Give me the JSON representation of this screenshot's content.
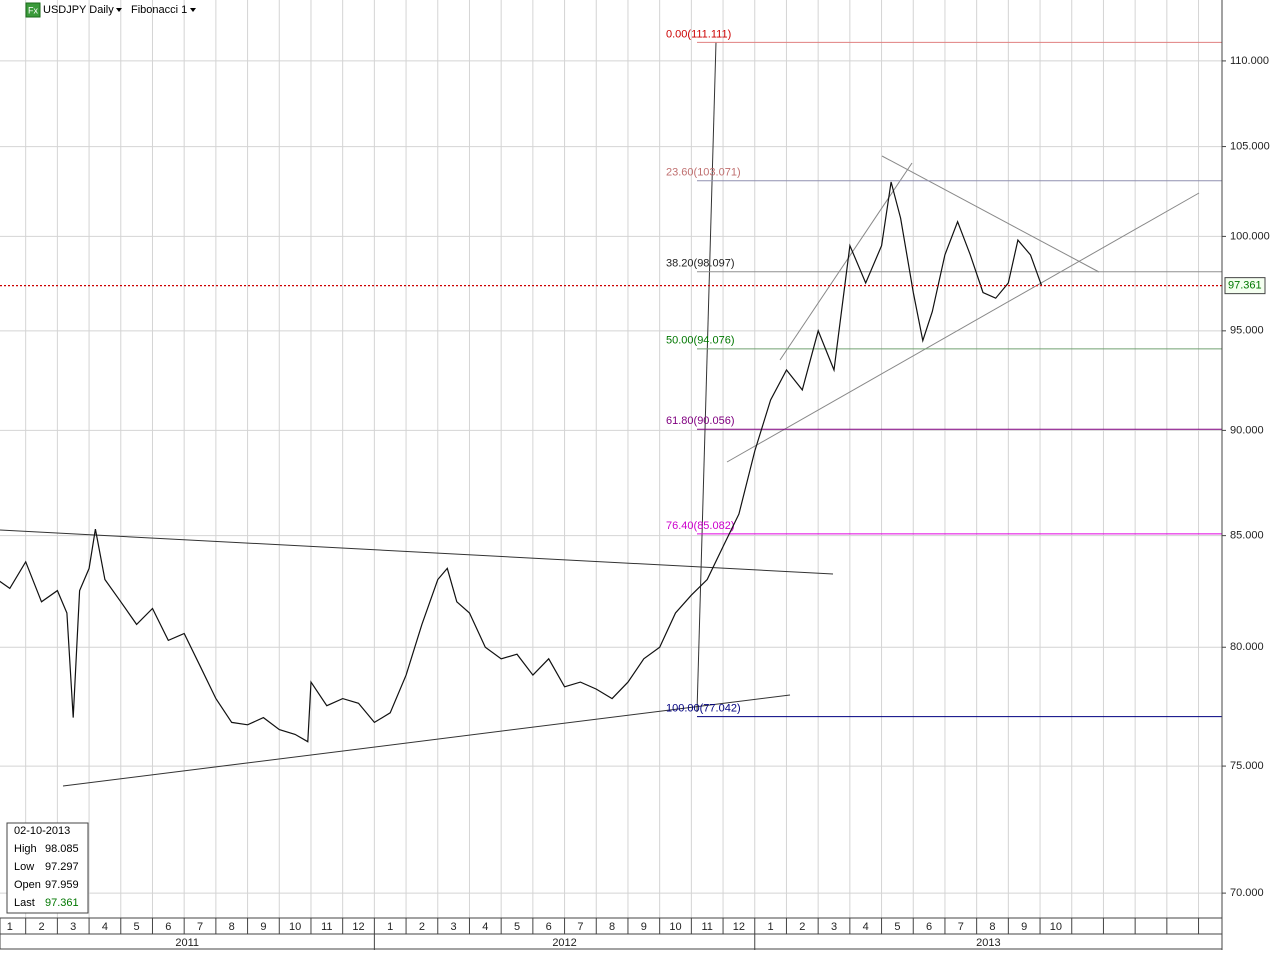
{
  "header": {
    "badge": "Fx",
    "symbol": "USDJPY Daily",
    "study": "Fibonacci 1"
  },
  "chart_data": {
    "type": "line",
    "color": "#111111",
    "log_scale": true,
    "grid": true,
    "x": [
      0.1,
      0.5,
      1.0,
      1.5,
      2.0,
      2.3,
      2.5,
      2.7,
      3.0,
      3.2,
      3.5,
      4.0,
      4.5,
      5.0,
      5.5,
      6.0,
      6.5,
      7.0,
      7.5,
      8.0,
      8.5,
      9.0,
      9.5,
      9.9,
      10.0,
      10.5,
      11.0,
      11.5,
      12.0,
      12.5,
      13.0,
      13.5,
      14.0,
      14.3,
      14.6,
      15.0,
      15.5,
      16.0,
      16.5,
      17.0,
      17.5,
      18.0,
      18.5,
      19.0,
      19.5,
      20.0,
      20.5,
      21.0,
      21.5,
      22.0,
      22.5,
      23.0,
      23.5,
      24.0,
      24.5,
      25.0,
      25.5,
      26.0,
      26.5,
      27.0,
      27.5,
      28.0,
      28.3,
      28.6,
      29.0,
      29.3,
      29.6,
      30.0,
      30.4,
      30.8,
      31.2,
      31.6,
      32.0,
      32.3,
      32.7,
      33.05
    ],
    "values": [
      83,
      82.6,
      83.8,
      82,
      82.5,
      81.5,
      77,
      82.5,
      83.5,
      85.3,
      83,
      82,
      81,
      81.7,
      80.3,
      80.6,
      79.2,
      77.8,
      76.8,
      76.7,
      77,
      76.5,
      76.3,
      76,
      78.5,
      77.5,
      77.8,
      77.6,
      76.8,
      77.2,
      78.8,
      81,
      83,
      83.5,
      82,
      81.5,
      80,
      79.5,
      79.7,
      78.8,
      79.5,
      78.3,
      78.5,
      78.2,
      77.8,
      78.5,
      79.5,
      80,
      81.5,
      82.3,
      83,
      84.5,
      86,
      89,
      91.5,
      93,
      92,
      95,
      93,
      99.5,
      97.5,
      99.5,
      103,
      101,
      97,
      94.5,
      96,
      99,
      100.8,
      99,
      97,
      96.7,
      97.5,
      99.8,
      99,
      97.36
    ],
    "xlim": [
      0.19,
      38.74
    ],
    "ylim": [
      69.06,
      113.7
    ],
    "yticks": [
      {
        "value": 70,
        "label": "70.000"
      },
      {
        "value": 75,
        "label": "75.000"
      },
      {
        "value": 80,
        "label": "80.000"
      },
      {
        "value": 85,
        "label": "85.000"
      },
      {
        "value": 90,
        "label": "90.000"
      },
      {
        "value": 95,
        "label": "95.000"
      },
      {
        "value": 100,
        "label": "100.000"
      },
      {
        "value": 105,
        "label": "105.000"
      },
      {
        "value": 110,
        "label": "110.000"
      }
    ],
    "xticks": [
      {
        "value": 0,
        "label": "1"
      },
      {
        "value": 1,
        "label": "2"
      },
      {
        "value": 2,
        "label": "3"
      },
      {
        "value": 3,
        "label": "4"
      },
      {
        "value": 4,
        "label": "5"
      },
      {
        "value": 5,
        "label": "6"
      },
      {
        "value": 6,
        "label": "7"
      },
      {
        "value": 7,
        "label": "8"
      },
      {
        "value": 8,
        "label": "9"
      },
      {
        "value": 9,
        "label": "10"
      },
      {
        "value": 10,
        "label": "11"
      },
      {
        "value": 11,
        "label": "12"
      },
      {
        "value": 12,
        "label": "1"
      },
      {
        "value": 13,
        "label": "2"
      },
      {
        "value": 14,
        "label": "3"
      },
      {
        "value": 15,
        "label": "4"
      },
      {
        "value": 16,
        "label": "5"
      },
      {
        "value": 17,
        "label": "6"
      },
      {
        "value": 18,
        "label": "7"
      },
      {
        "value": 19,
        "label": "8"
      },
      {
        "value": 20,
        "label": "9"
      },
      {
        "value": 21,
        "label": "10"
      },
      {
        "value": 22,
        "label": "11"
      },
      {
        "value": 23,
        "label": "12"
      },
      {
        "value": 24,
        "label": "1"
      },
      {
        "value": 25,
        "label": "2"
      },
      {
        "value": 26,
        "label": "3"
      },
      {
        "value": 27,
        "label": "4"
      },
      {
        "value": 28,
        "label": "5"
      },
      {
        "value": 29,
        "label": "6"
      },
      {
        "value": 30,
        "label": "7"
      },
      {
        "value": 31,
        "label": "8"
      },
      {
        "value": 32,
        "label": "9"
      },
      {
        "value": 33,
        "label": "10"
      }
    ],
    "years": [
      {
        "value": 0,
        "label": "2011"
      },
      {
        "value": 12,
        "label": "2012"
      },
      {
        "value": 24,
        "label": "2013"
      }
    ],
    "fib_levels": [
      {
        "label": "0.00(111.111)",
        "value": 111.111,
        "color": "#e08080",
        "text_color": "#cc0000"
      },
      {
        "label": "23.60(103.071)",
        "value": 103.071,
        "color": "#9090b0",
        "text_color": "#c07070"
      },
      {
        "label": "38.20(98.097)",
        "value": 98.097,
        "color": "#909090",
        "text_color": "#222222"
      },
      {
        "label": "50.00(94.076)",
        "value": 94.076,
        "color": "#70a070",
        "text_color": "#007700"
      },
      {
        "label": "61.80(90.056)",
        "value": 90.056,
        "color": "#800080",
        "text_color": "#800080"
      },
      {
        "label": "76.40(85.082)",
        "value": 85.082,
        "color": "#e000e0",
        "text_color": "#cc00cc"
      },
      {
        "label": "100.00(77.042)",
        "value": 77.042,
        "color": "#000080",
        "text_color": "#000080"
      }
    ],
    "last_price": 97.361,
    "last_color": "#cc0000"
  },
  "info": {
    "date": "02-10-2013",
    "rows": [
      {
        "label": "High",
        "value": 98.085
      },
      {
        "label": "Low",
        "value": 97.297
      },
      {
        "label": "Open",
        "value": 97.959
      },
      {
        "label": "Last",
        "value": 97.361
      }
    ]
  }
}
